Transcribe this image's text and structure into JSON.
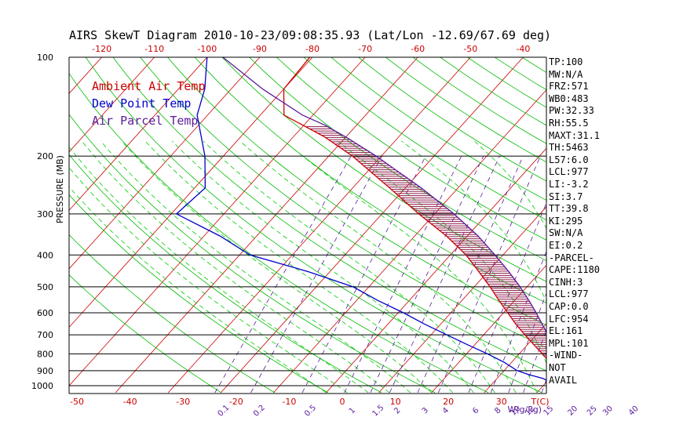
{
  "title": "AIRS SkewT Diagram 2010-10-23/09:08:35.93 (Lat/Lon -12.69/67.69 deg)",
  "legend": [
    {
      "text": "Ambient Air Temp",
      "color": "#cc0000"
    },
    {
      "text": "Dew Point Temp",
      "color": "#0000cc"
    },
    {
      "text": "Air Parcel Temp",
      "color": "#5a1a9a"
    }
  ],
  "axes": {
    "ylabel": "PRESSURE (MB)",
    "xlabel_bottom": "T(C)",
    "mixing_ratio_unit": "W(g/kg)",
    "pressure_ticks": [
      "100",
      "200",
      "300",
      "400",
      "500",
      "600",
      "700",
      "800",
      "900",
      "1000"
    ],
    "top_temp_ticks": [
      "-120",
      "-110",
      "-100",
      "-90",
      "-80",
      "-70",
      "-60",
      "-50",
      "-40"
    ],
    "bottom_temp_ticks": [
      "-50",
      "-40",
      "-30",
      "-20",
      "-10",
      "0",
      "10",
      "20",
      "30"
    ],
    "mixing_ratio_ticks": [
      "0.1",
      "0.2",
      "0.5",
      "1",
      "1.5",
      "2",
      "3",
      "4",
      "6",
      "8",
      "10",
      "12",
      "15",
      "20",
      "25",
      "30",
      "40"
    ]
  },
  "indices": [
    "TP:100",
    "MW:N/A",
    "FRZ:571",
    "WB0:483",
    "PW:32.33",
    "RH:55.5",
    "MAXT:31.1",
    "TH:5463",
    "L57:6.0",
    "LCL:977",
    "LI:-3.2",
    "SI:3.7",
    "TT:39.8",
    "KI:295",
    "SW:N/A",
    "EI:0.2",
    "-PARCEL-",
    "CAPE:1180",
    "CINH:3",
    "LCL:977",
    "CAP:0.0",
    "LFC:954",
    "EL:161",
    "MPL:101",
    "-WIND-",
    "NOT",
    "AVAIL"
  ],
  "colors": {
    "temperature": "#cc0000",
    "dewpoint": "#0000cc",
    "parcel": "#5a1a9a",
    "isotherm": "#cc0000",
    "dry_adiabat": "#00bb00",
    "moist_adiabat": "#00cc00",
    "mixing_ratio": "#5a1a9a",
    "isobar": "#000000",
    "cape_hatch": "#8b1a4a",
    "tick_labels": "#cc0000"
  },
  "chart_data": {
    "type": "line",
    "title": "AIRS SkewT Diagram 2010-10-23/09:08:35.93 (Lat/Lon -12.69/67.69 deg)",
    "ylabel": "PRESSURE (MB)",
    "xlabel": "T(C)",
    "y_scale": "log",
    "ylim": [
      1050,
      100
    ],
    "xlim_bottom_C": [
      -50,
      40
    ],
    "grid": true,
    "legend_placement": "top-left",
    "series": [
      {
        "name": "Ambient Air Temp",
        "color": "#cc0000",
        "points": [
          [
            1010,
            27.6
          ],
          [
            1000,
            26.2
          ],
          [
            975,
            24.4
          ],
          [
            950,
            22.6
          ],
          [
            925,
            21.0
          ],
          [
            900,
            20.1
          ],
          [
            850,
            17.3
          ],
          [
            800,
            14.4
          ],
          [
            750,
            11.2
          ],
          [
            700,
            7.8
          ],
          [
            650,
            4.3
          ],
          [
            600,
            0.8
          ],
          [
            550,
            -3.0
          ],
          [
            500,
            -7.0
          ],
          [
            450,
            -11.7
          ],
          [
            400,
            -17.0
          ],
          [
            350,
            -24.0
          ],
          [
            300,
            -33.0
          ],
          [
            250,
            -43.0
          ],
          [
            200,
            -55.5
          ],
          [
            175,
            -64.0
          ],
          [
            150,
            -75.5
          ],
          [
            125,
            -80.0
          ],
          [
            100,
            -80.5
          ]
        ]
      },
      {
        "name": "Dew Point Temp",
        "color": "#0000cc",
        "points": [
          [
            1010,
            21.3
          ],
          [
            1000,
            22.0
          ],
          [
            975,
            20.7
          ],
          [
            950,
            18.7
          ],
          [
            925,
            15.3
          ],
          [
            900,
            12.5
          ],
          [
            850,
            8.7
          ],
          [
            800,
            4.0
          ],
          [
            750,
            -1.4
          ],
          [
            700,
            -7.0
          ],
          [
            650,
            -13.0
          ],
          [
            600,
            -19.0
          ],
          [
            550,
            -26.0
          ],
          [
            500,
            -33.0
          ],
          [
            450,
            -44.0
          ],
          [
            400,
            -58.0
          ],
          [
            350,
            -67.0
          ],
          [
            300,
            -79.0
          ],
          [
            250,
            -78.0
          ],
          [
            200,
            -83.5
          ],
          [
            150,
            -92.0
          ],
          [
            125,
            -95.0
          ],
          [
            100,
            -100.0
          ]
        ]
      },
      {
        "name": "Air Parcel Temp",
        "color": "#5a1a9a",
        "points": [
          [
            1010,
            27.6
          ],
          [
            977,
            24.8
          ],
          [
            950,
            23.6
          ],
          [
            900,
            21.8
          ],
          [
            850,
            19.6
          ],
          [
            800,
            17.3
          ],
          [
            750,
            14.8
          ],
          [
            700,
            12.2
          ],
          [
            650,
            9.3
          ],
          [
            600,
            6.2
          ],
          [
            550,
            2.7
          ],
          [
            500,
            -1.3
          ],
          [
            450,
            -6.0
          ],
          [
            400,
            -11.5
          ],
          [
            350,
            -18.0
          ],
          [
            300,
            -26.3
          ],
          [
            250,
            -37.0
          ],
          [
            200,
            -51.0
          ],
          [
            175,
            -60.0
          ],
          [
            161,
            -66.0
          ],
          [
            150,
            -72.0
          ],
          [
            125,
            -84.0
          ],
          [
            100,
            -97.0
          ]
        ]
      }
    ]
  }
}
